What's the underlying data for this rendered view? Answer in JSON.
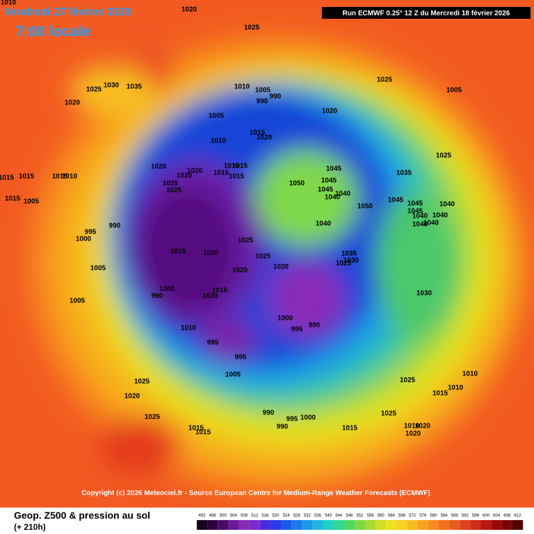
{
  "header": {
    "date": "Vendredi 27 février 2026",
    "time": "7:00 locale",
    "run": "Run ECMWF 0.25° 12 Z du Mercredi 18 février 2026"
  },
  "copyright": "Copyright (c) 2026 Meteociel.fr - Source European Centre for Medium-Range Weather Forecasts (ECMWF)",
  "footer": {
    "title": "Geop. Z500 & pression au sol",
    "lead": "(+ 210h)"
  },
  "scale": {
    "ticks": [
      492,
      496,
      500,
      504,
      508,
      512,
      516,
      520,
      524,
      528,
      532,
      536,
      540,
      544,
      548,
      552,
      556,
      560,
      564,
      568,
      572,
      576,
      580,
      584,
      588,
      592,
      596,
      600,
      604,
      608,
      612
    ]
  },
  "isobar_labels": [
    "1010",
    "1020",
    "1025",
    "1025",
    "1030",
    "1035",
    "1020",
    "1010",
    "1005",
    "990",
    "990",
    "1025",
    "1005",
    "1020",
    "1005",
    "1015",
    "1020",
    "1010",
    "1020",
    "1020",
    "1015",
    "1015",
    "1010",
    "1015",
    "1020",
    "1025",
    "1025",
    "1045",
    "1045",
    "1050",
    "1045",
    "1040",
    "1040",
    "1035",
    "1050",
    "1045",
    "1045",
    "1040",
    "1045",
    "1040",
    "1040",
    "1040",
    "1040",
    "1040",
    "1025",
    "1015",
    "1015",
    "1010",
    "1015",
    "1015",
    "1005",
    "990",
    "995",
    "1000",
    "1015",
    "1020",
    "1025",
    "1025",
    "1020",
    "1020",
    "1035",
    "1030",
    "1025",
    "1005",
    "1000",
    "990",
    "1015",
    "1020",
    "1030",
    "1000",
    "995",
    "990",
    "1005",
    "1010",
    "995",
    "995",
    "1005",
    "1025",
    "1020",
    "1025",
    "990",
    "995",
    "990",
    "1000",
    "1015",
    "1015",
    "1025",
    "1025",
    "1010",
    "1015",
    "1010",
    "1020",
    "1020",
    "1010",
    "1015"
  ]
}
